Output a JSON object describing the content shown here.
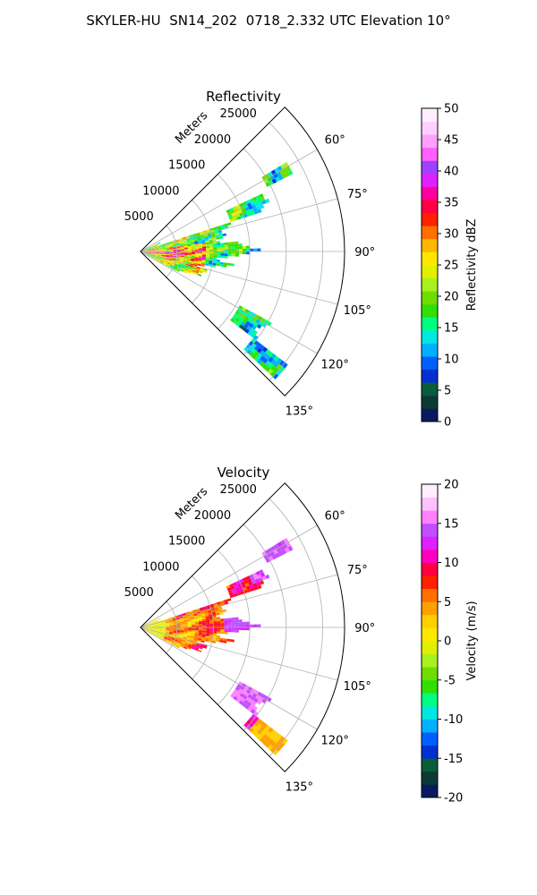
{
  "figure": {
    "title": "SKYLER-HU  SN14_202  0718_2.332 UTC Elevation 10°"
  },
  "chart_data": [
    {
      "type": "polar sector (radar PPI)",
      "title": "Reflectivity",
      "radial_label": "Meters",
      "radial_ticks": [
        5000,
        10000,
        15000,
        20000,
        25000
      ],
      "radial_range": [
        0,
        28000
      ],
      "angle_ticks": [
        "60°",
        "75°",
        "90°",
        "105°",
        "120°",
        "135°"
      ],
      "angle_range_deg": [
        45,
        135
      ],
      "grid": true,
      "colorbar": {
        "label": "Reflectivity dBZ",
        "range": [
          0,
          50
        ],
        "ticks": [
          0,
          5,
          10,
          15,
          20,
          25,
          30,
          35,
          40,
          45,
          50
        ],
        "colors": [
          "#0a1a60",
          "#0b3a35",
          "#0a5c3a",
          "#0030d0",
          "#0060ff",
          "#00b0ff",
          "#00e8e0",
          "#00ff80",
          "#30e000",
          "#70dd00",
          "#a8f020",
          "#e0f000",
          "#ffe800",
          "#ffb800",
          "#ff7000",
          "#ff2000",
          "#ff0040",
          "#ff00a0",
          "#e020ff",
          "#a040ff",
          "#ff60ff",
          "#ffa0ff",
          "#ffd0ff",
          "#ffeeff"
        ]
      },
      "echo_summary": "Echoes mostly 15–30 dBZ within ~12 km between 60° and 130°, embedded cores 35–45 dBZ near 85°–105° within 8 km; isolated cells near 60° (~22 km) and 120°–135° (~17–25 km)."
    },
    {
      "type": "polar sector (radar PPI)",
      "title": "Velocity",
      "radial_label": "Meters",
      "radial_ticks": [
        5000,
        10000,
        15000,
        20000,
        25000
      ],
      "radial_range": [
        0,
        28000
      ],
      "angle_ticks": [
        "60°",
        "75°",
        "90°",
        "105°",
        "120°",
        "135°"
      ],
      "angle_range_deg": [
        45,
        135
      ],
      "grid": true,
      "colorbar": {
        "label": "Velocity (m/s)",
        "range": [
          -20,
          20
        ],
        "ticks": [
          -20,
          -15,
          -10,
          -5,
          0,
          5,
          10,
          15,
          20
        ],
        "colors": [
          "#0a1a60",
          "#0b3a35",
          "#0a5c3a",
          "#0030d0",
          "#0060ff",
          "#00b0ff",
          "#00e8e0",
          "#00ff80",
          "#30e000",
          "#70dd00",
          "#a8f020",
          "#e0f000",
          "#ffe800",
          "#ffd000",
          "#ffa000",
          "#ff7000",
          "#ff2000",
          "#ff0040",
          "#ff00c0",
          "#e020ff",
          "#c050ff",
          "#ff80ff",
          "#ffc0ff",
          "#ffeeff"
        ]
      },
      "echo_summary": "Mostly 0–10 m/s (yellow-orange-red) across the sector; 10–15 m/s near 60° and 80°–90° beyond 10 km; slightly negative near the radar origin."
    }
  ]
}
